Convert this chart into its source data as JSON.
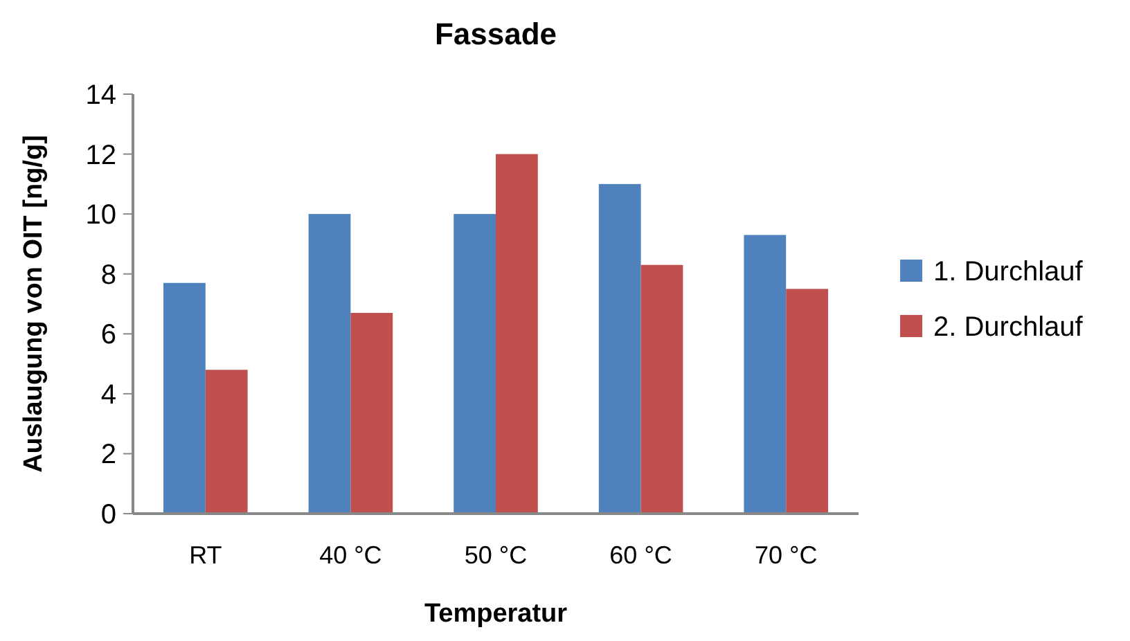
{
  "chart_data": {
    "type": "bar",
    "title": "Fassade",
    "xlabel": "Temperatur",
    "ylabel": "Auslaugung von OIT [ng/g]",
    "categories": [
      "RT",
      "40 °C",
      "50 °C",
      "60 °C",
      "70 °C"
    ],
    "series": [
      {
        "name": "1. Durchlauf",
        "color": "#4f81bd",
        "values": [
          7.7,
          10,
          10,
          11,
          9.3
        ]
      },
      {
        "name": "2. Durchlauf",
        "color": "#c0504d",
        "values": [
          4.8,
          6.7,
          12,
          8.3,
          7.5
        ]
      }
    ],
    "ylim": [
      0,
      14
    ],
    "yticks": [
      0,
      2,
      4,
      6,
      8,
      10,
      12,
      14
    ],
    "grid": false,
    "legend": "right"
  }
}
